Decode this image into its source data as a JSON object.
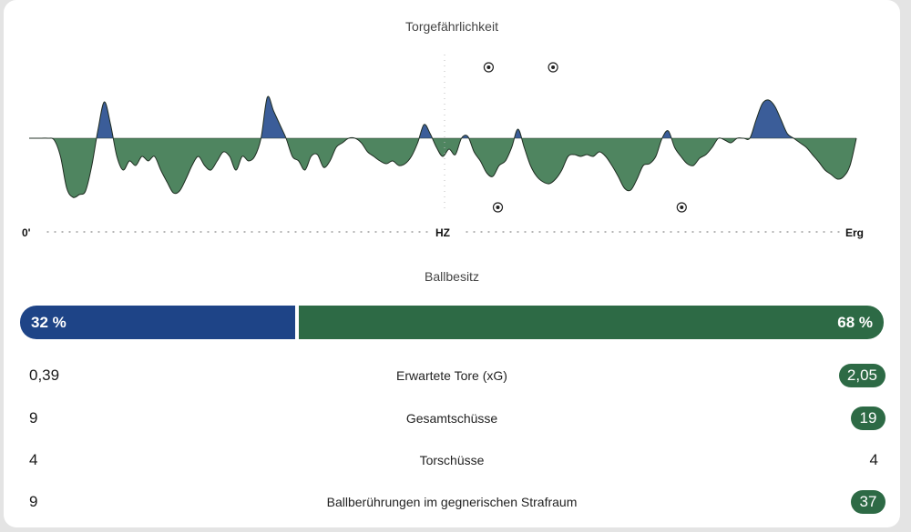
{
  "momentum": {
    "title": "Torgefährlichkeit",
    "start_label": "0'",
    "half_label": "HZ",
    "end_label": "Erg",
    "home_color": "#3b5d99",
    "away_color": "#4f8560",
    "goals": [
      {
        "team": "home",
        "minute": 50
      },
      {
        "team": "home",
        "minute": 57
      },
      {
        "team": "away",
        "minute": 51
      },
      {
        "team": "away",
        "minute": 71
      }
    ],
    "series": [
      0,
      0,
      0,
      0,
      -2,
      -20,
      -55,
      -65,
      -62,
      -58,
      -30,
      10,
      40,
      15,
      -20,
      -35,
      -25,
      -30,
      -20,
      -25,
      -20,
      -35,
      -48,
      -60,
      -58,
      -45,
      -30,
      -20,
      -30,
      -35,
      -25,
      -15,
      -20,
      -35,
      -20,
      -25,
      -20,
      0,
      45,
      30,
      15,
      0,
      -20,
      -25,
      -35,
      -20,
      -18,
      -32,
      -25,
      -10,
      -5,
      0,
      0,
      -5,
      -15,
      -20,
      -25,
      -28,
      -25,
      -30,
      -28,
      -20,
      -5,
      15,
      5,
      -10,
      -20,
      -12,
      -18,
      0,
      2,
      -15,
      -25,
      -38,
      -42,
      -30,
      -25,
      -10,
      10,
      -10,
      -30,
      -42,
      -48,
      -50,
      -45,
      -35,
      -20,
      -18,
      -20,
      -18,
      -20,
      -15,
      -20,
      -30,
      -42,
      -55,
      -57,
      -45,
      -30,
      -28,
      -20,
      0,
      8,
      -10,
      -20,
      -28,
      -30,
      -22,
      -18,
      -10,
      0,
      -2,
      -5,
      0,
      0,
      0,
      20,
      38,
      42,
      35,
      20,
      5,
      0,
      -5,
      -10,
      -18,
      -26,
      -35,
      -40,
      -45,
      -42,
      -30,
      0
    ]
  },
  "possession": {
    "title": "Ballbesitz",
    "home_label": "32 %",
    "away_label": "68 %",
    "home_value": 32,
    "away_value": 68,
    "home_color": "#1e4487",
    "away_color": "#2d6a45"
  },
  "stats": [
    {
      "label": "Erwartete Tore (xG)",
      "home": "0,39",
      "away": "2,05",
      "away_highlight": true
    },
    {
      "label": "Gesamtschüsse",
      "home": "9",
      "away": "19",
      "away_highlight": true
    },
    {
      "label": "Torschüsse",
      "home": "4",
      "away": "4",
      "away_highlight": false
    },
    {
      "label": "Ballberührungen im gegnerischen Strafraum",
      "home": "9",
      "away": "37",
      "away_highlight": true
    }
  ]
}
